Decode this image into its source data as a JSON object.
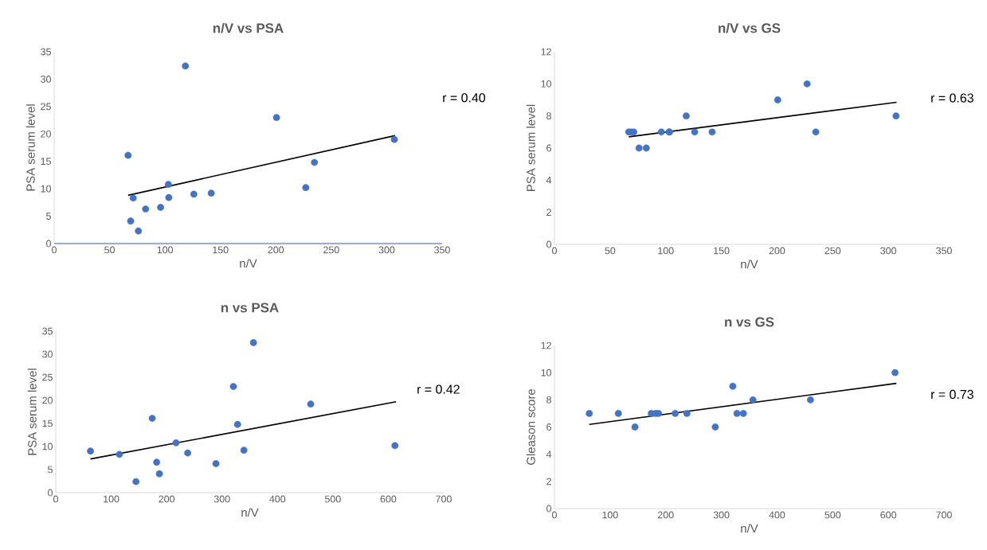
{
  "chart_data": [
    {
      "type": "scatter",
      "title": "n/V vs PSA",
      "xlabel": "n/V",
      "ylabel": "PSA serum level",
      "annotations": [
        "r = 0.40"
      ],
      "xlim": [
        0,
        350
      ],
      "ylim": [
        0,
        35
      ],
      "xticks": [
        0,
        50,
        100,
        150,
        200,
        250,
        300,
        350
      ],
      "yticks": [
        0,
        5,
        10,
        15,
        20,
        25,
        30,
        35
      ],
      "marker": "circle",
      "ref_lines": [
        {
          "axis": "y",
          "value": 0,
          "color": "#4472c4"
        }
      ],
      "series": [
        {
          "color": "#4472c4",
          "x": [
            66.7,
            69,
            71.3,
            76,
            82.5,
            96,
            103,
            103.4,
            118.4,
            126,
            141.7,
            200.6,
            227,
            234.8,
            306.9
          ],
          "values": [
            16.1,
            4.1,
            8.3,
            2.3,
            6.3,
            6.6,
            10.8,
            8.4,
            32.4,
            9.0,
            9.2,
            23.0,
            10.2,
            14.8,
            19.0
          ]
        },
        {
          "type": "line",
          "color": "#000000",
          "marker": "none",
          "x": [
            66.7,
            307.5
          ],
          "values": [
            8.8,
            19.7
          ]
        }
      ]
    },
    {
      "type": "scatter",
      "title": "n/V vs GS",
      "xlabel": "n/V",
      "ylabel": "PSA serum level",
      "annotations": [
        "r = 0.63"
      ],
      "xlim": [
        0,
        350
      ],
      "ylim": [
        0,
        12
      ],
      "xticks": [
        0,
        50,
        100,
        150,
        200,
        250,
        300,
        350
      ],
      "yticks": [
        0,
        2,
        4,
        6,
        8,
        10,
        12
      ],
      "marker": "circle",
      "series": [
        {
          "color": "#4472c4",
          "x": [
            66.7,
            69,
            71.3,
            76,
            82.5,
            96,
            103,
            103.4,
            118.4,
            126,
            141.7,
            200.6,
            227,
            234.8,
            306.9
          ],
          "values": [
            7,
            7,
            7,
            6,
            6,
            7,
            7,
            7,
            8,
            7,
            7,
            9,
            10,
            7,
            8
          ]
        },
        {
          "type": "line",
          "color": "#000000",
          "marker": "none",
          "x": [
            66.8,
            307.4
          ],
          "values": [
            6.7,
            8.85
          ]
        }
      ]
    },
    {
      "type": "scatter",
      "title": "n vs PSA",
      "xlabel": "n/V",
      "ylabel": "PSA serum level",
      "annotations": [
        "r = 0.42"
      ],
      "xlim": [
        0,
        700
      ],
      "ylim": [
        0,
        35
      ],
      "xticks": [
        0,
        100,
        200,
        300,
        400,
        500,
        600,
        700
      ],
      "yticks": [
        0,
        5,
        10,
        15,
        20,
        25,
        30,
        35
      ],
      "marker": "circle",
      "series": [
        {
          "color": "#4472c4",
          "x": [
            62.6,
            114.9,
            144.7,
            174,
            182,
            187,
            217,
            238,
            289,
            320.5,
            328,
            339.5,
            356.7,
            460,
            612
          ],
          "values": [
            9.0,
            8.3,
            2.4,
            16.1,
            6.6,
            4.1,
            10.8,
            8.6,
            6.3,
            23.0,
            14.8,
            9.2,
            32.5,
            19.2,
            10.2
          ]
        },
        {
          "type": "line",
          "color": "#000000",
          "marker": "none",
          "x": [
            62.6,
            614
          ],
          "values": [
            7.3,
            19.7
          ]
        }
      ]
    },
    {
      "type": "scatter",
      "title": "n vs GS",
      "xlabel": "n/V",
      "ylabel": "Gleason score",
      "annotations": [
        "r = 0.73"
      ],
      "xlim": [
        0,
        700
      ],
      "ylim": [
        0,
        12
      ],
      "xticks": [
        0,
        100,
        200,
        300,
        400,
        500,
        600,
        700
      ],
      "yticks": [
        0,
        2,
        4,
        6,
        8,
        10,
        12
      ],
      "marker": "circle",
      "series": [
        {
          "color": "#4472c4",
          "x": [
            62.6,
            114.9,
            144.7,
            174,
            182,
            187,
            217,
            238,
            289,
            320.5,
            328,
            339.5,
            356.7,
            460,
            612
          ],
          "values": [
            7,
            7,
            6,
            7,
            7,
            7,
            7,
            7,
            6,
            9,
            7,
            7,
            8,
            8,
            10
          ]
        },
        {
          "type": "line",
          "color": "#000000",
          "marker": "none",
          "x": [
            62.4,
            614.5
          ],
          "values": [
            6.19,
            9.21
          ]
        }
      ]
    }
  ]
}
